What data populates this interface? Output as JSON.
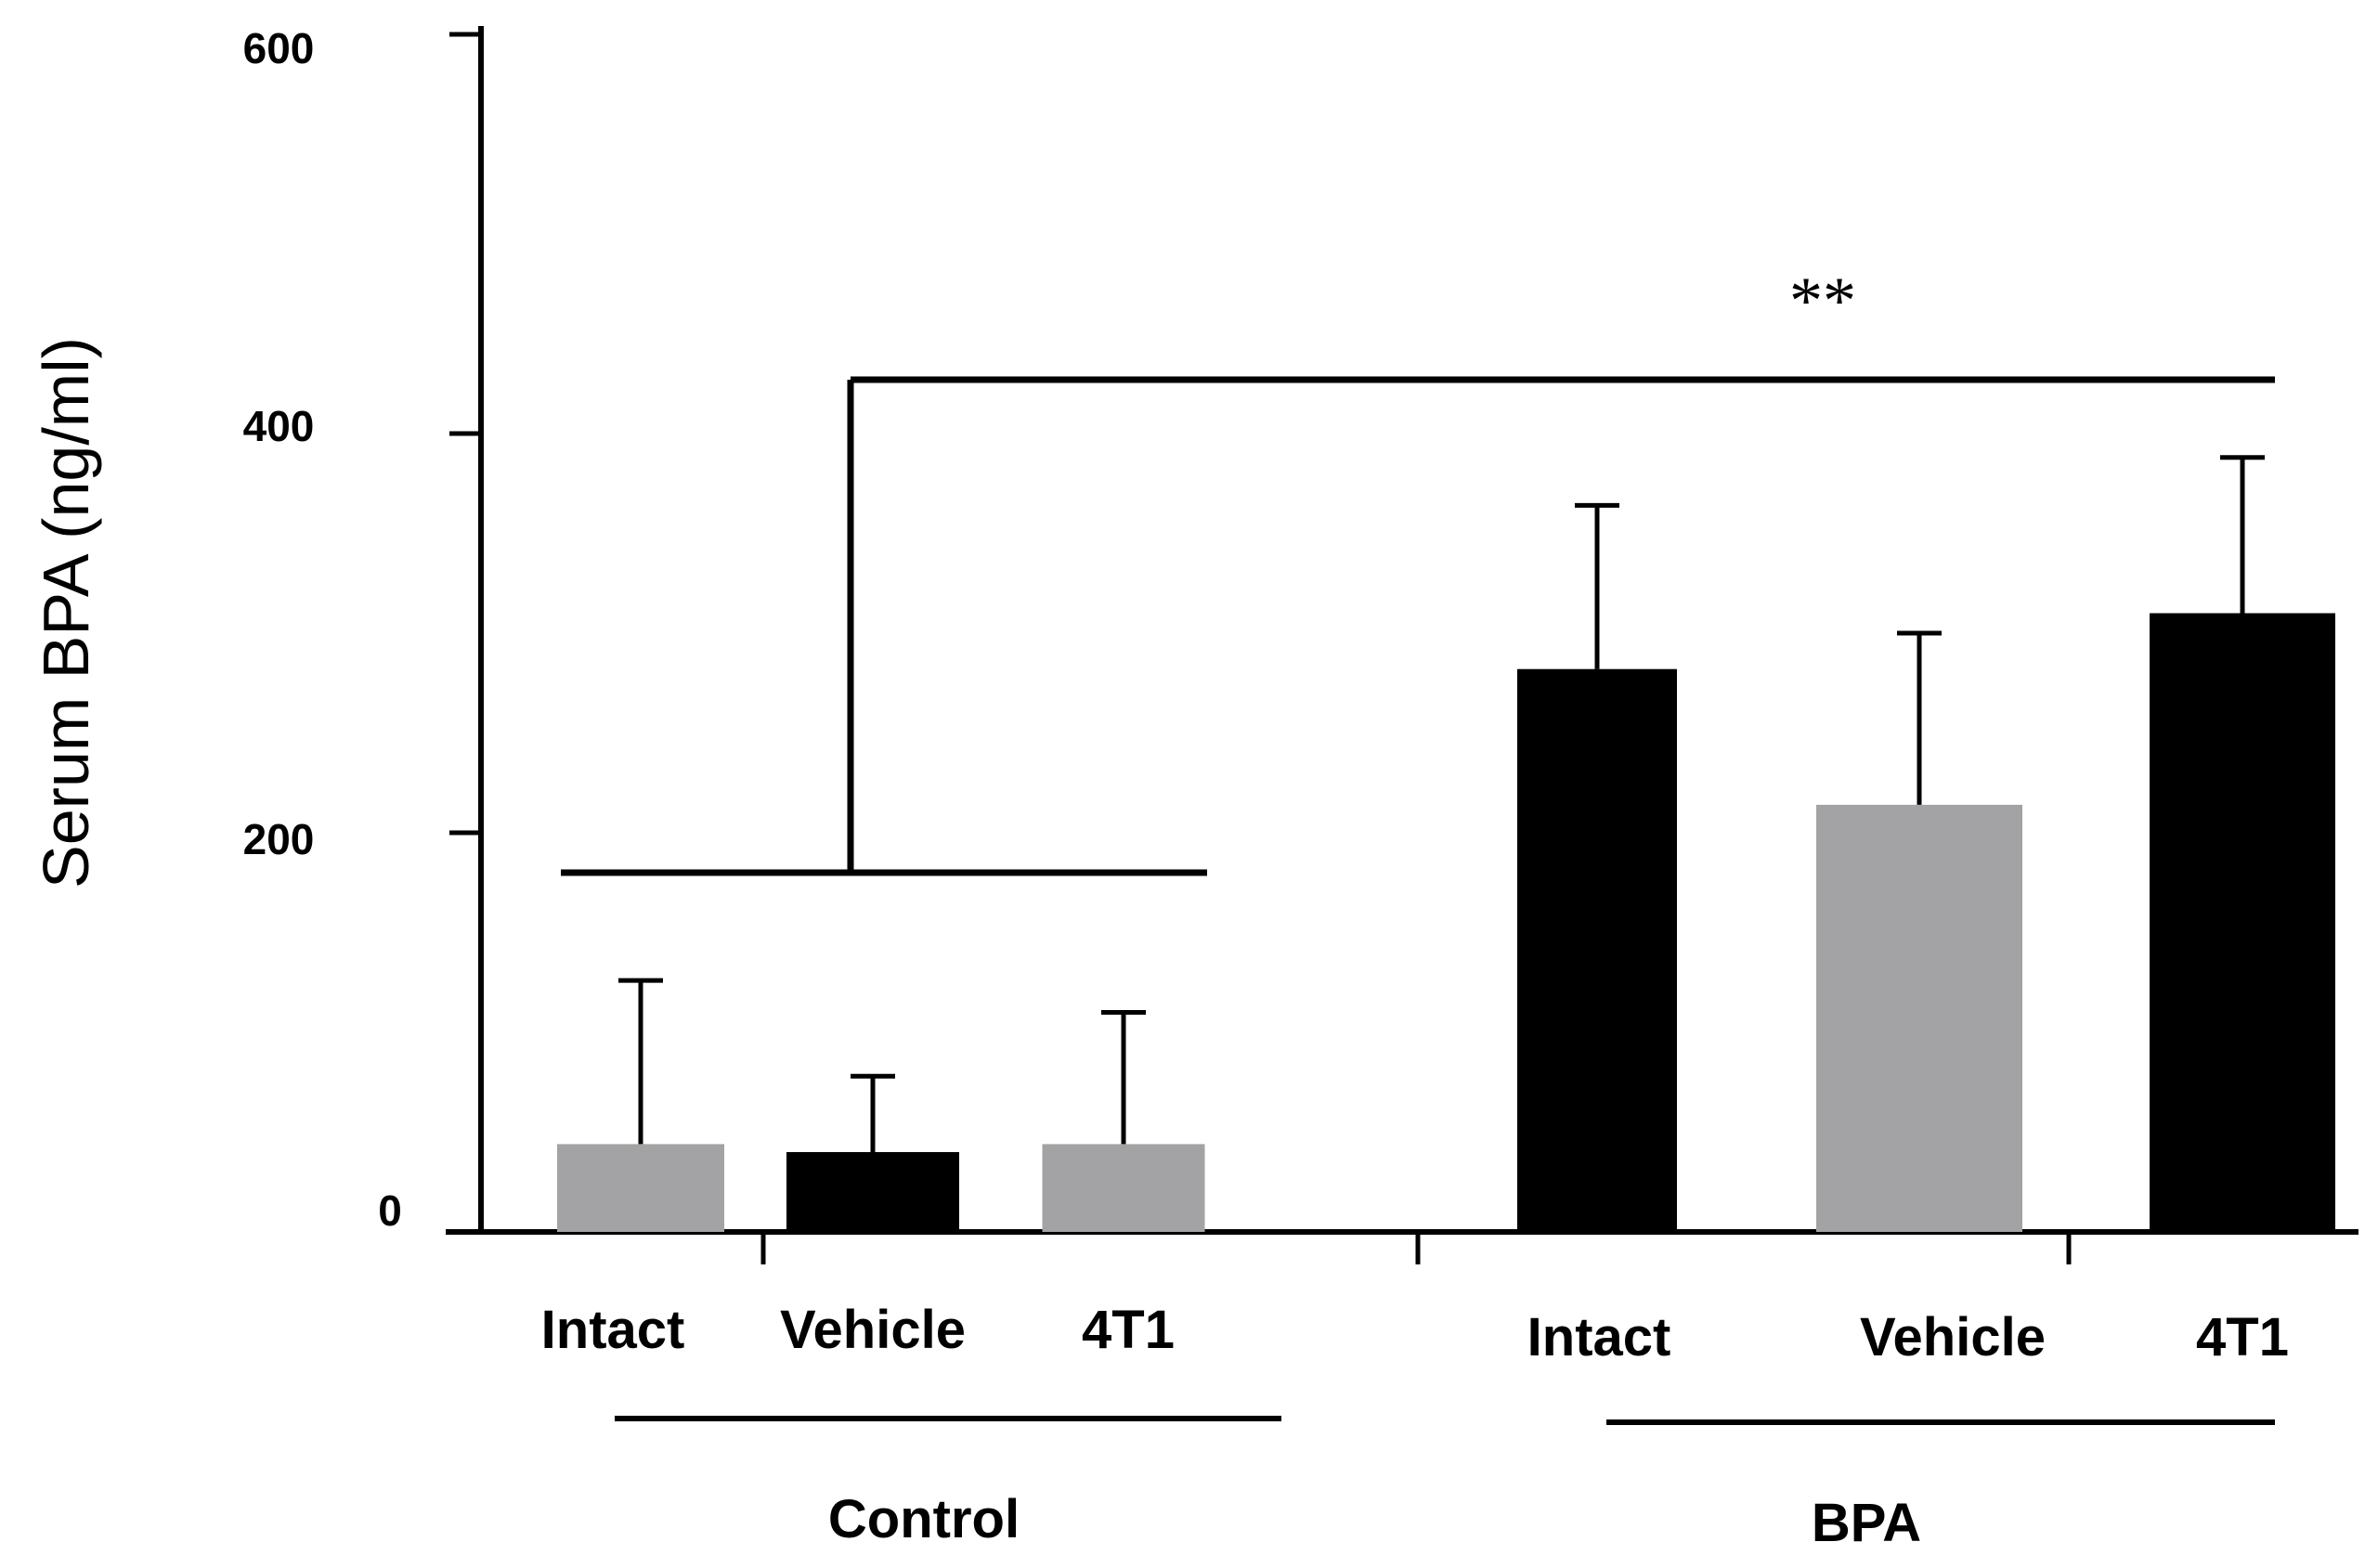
{
  "chart_data": {
    "type": "bar",
    "title": "",
    "xlabel": "",
    "ylabel": "Serum BPA (ng/ml)",
    "ylim": [
      0,
      600
    ],
    "yticks": [
      0,
      200,
      400,
      600
    ],
    "grid": false,
    "categories": [
      "Intact",
      "Vehicle",
      "4T1",
      "Intact",
      "Vehicle",
      "4T1"
    ],
    "groups": [
      {
        "name": "Control",
        "members": [
          0,
          1,
          2
        ]
      },
      {
        "name": "BPA",
        "members": [
          3,
          4,
          5
        ]
      }
    ],
    "values": [
      44,
      40,
      44,
      282,
      214,
      310
    ],
    "errors": [
      82,
      38,
      66,
      82,
      86,
      78
    ],
    "bar_colors": [
      "#a3a3a5",
      "#000000",
      "#a3a3a5",
      "#000000",
      "#a3a3a5",
      "#000000"
    ],
    "significance": {
      "label": "**",
      "between": [
        "Control",
        "BPA"
      ],
      "bracket_level": 427,
      "control_line_level": 180
    }
  }
}
